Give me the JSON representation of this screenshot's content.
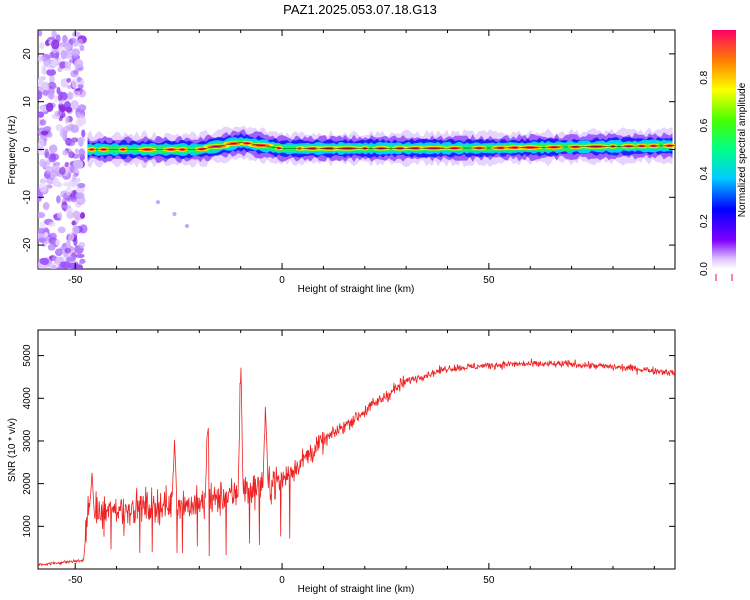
{
  "title": "PAZ1.2025.053.07.18.G13",
  "chart_data": [
    {
      "type": "heatmap",
      "xlabel": "Height of straight line (km)",
      "ylabel": "Frequency (Hz)",
      "xlim": [
        -59,
        95
      ],
      "ylim": [
        -25,
        25
      ],
      "xticks": [
        -50,
        0,
        50
      ],
      "yticks": [
        -20,
        -10,
        0,
        10,
        20
      ],
      "colorbar": {
        "label": "Normalized spectral amplitude",
        "range": [
          0,
          1
        ],
        "ticks": [
          0.0,
          0.2,
          0.4,
          0.6,
          0.8
        ],
        "tick_labels": [
          "0.0",
          "0.2",
          "0.4",
          "0.6",
          "0.8"
        ],
        "colormap": "rainbow (purple to red)"
      },
      "ridge": {
        "description": "main spectral line near 0 Hz",
        "x_range": [
          -47,
          95
        ],
        "frequency_hz": [
          {
            "x": -47,
            "f": 0.0
          },
          {
            "x": -20,
            "f": 0.0
          },
          {
            "x": -10,
            "f": 1.5
          },
          {
            "x": 0,
            "f": 0.2
          },
          {
            "x": 50,
            "f": 0.3
          },
          {
            "x": 75,
            "f": 0.6
          },
          {
            "x": 95,
            "f": 0.8
          }
        ]
      },
      "noise_region_x": [
        -59,
        -48
      ]
    },
    {
      "type": "line",
      "xlabel": "Height of straight line (km)",
      "ylabel": "SNR (10 * v/v)",
      "xlim": [
        -59,
        95
      ],
      "ylim": [
        0,
        5600
      ],
      "xticks": [
        -50,
        0,
        50
      ],
      "yticks": [
        1000,
        2000,
        3000,
        4000,
        5000
      ],
      "series": [
        {
          "color": "#ee2222",
          "envelope": [
            {
              "x": -59,
              "y": 100
            },
            {
              "x": -48,
              "y": 200
            },
            {
              "x": -47,
              "y": 1300
            },
            {
              "x": -30,
              "y": 1500
            },
            {
              "x": -20,
              "y": 1500
            },
            {
              "x": -10,
              "y": 1800
            },
            {
              "x": 0,
              "y": 2100
            },
            {
              "x": 10,
              "y": 3000
            },
            {
              "x": 20,
              "y": 3700
            },
            {
              "x": 30,
              "y": 4400
            },
            {
              "x": 40,
              "y": 4700
            },
            {
              "x": 55,
              "y": 4800
            },
            {
              "x": 70,
              "y": 4800
            },
            {
              "x": 85,
              "y": 4700
            },
            {
              "x": 95,
              "y": 4600
            }
          ],
          "peaks": [
            {
              "x": -46,
              "y": 2400
            },
            {
              "x": -26,
              "y": 3400
            },
            {
              "x": -18,
              "y": 4000
            },
            {
              "x": -10,
              "y": 5500
            },
            {
              "x": -4,
              "y": 4200
            }
          ]
        }
      ]
    }
  ]
}
